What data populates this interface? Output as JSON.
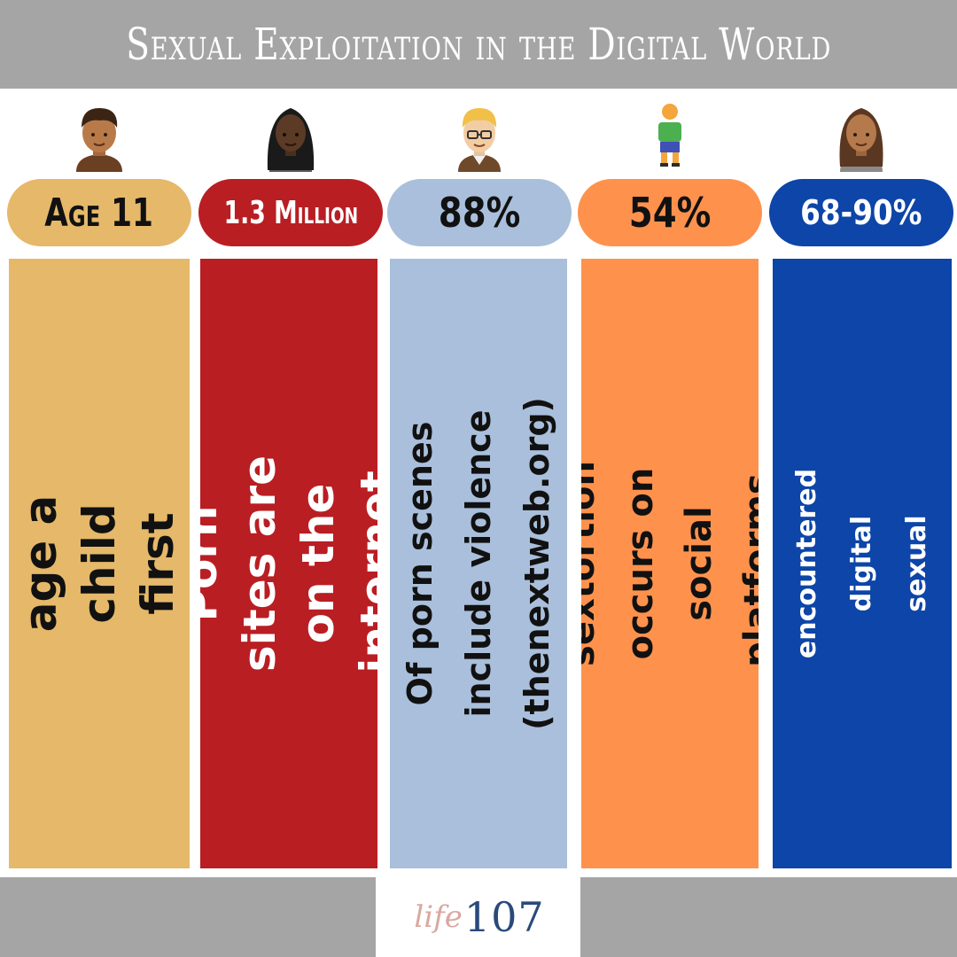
{
  "title": "Sexual Exploitation in the Digital World",
  "columns": [
    {
      "stat": "Age 11",
      "text": "The average age a child first sees porn.",
      "pill_color": "#e5b86a",
      "box_color": "#e5b86a",
      "text_color": "#111111",
      "avatar": "boy-avatar-icon"
    },
    {
      "stat": "1.3 Million",
      "text": "Porn sites are on the internet.",
      "pill_color": "#b91e23",
      "box_color": "#b91e23",
      "text_color": "#ffffff",
      "avatar": "woman-avatar-icon"
    },
    {
      "stat": "88%",
      "text": "Of porn scenes include violence (thenextweb.org)",
      "pill_color": "#a9bfdb",
      "box_color": "#a9bfdb",
      "text_color": "#111111",
      "avatar": "glasses-man-avatar-icon"
    },
    {
      "stat": "54%",
      "text": "Of sextortion occurs on social platforms. (Thorn)",
      "pill_color": "#fe924d",
      "box_color": "#fe924d",
      "text_color": "#111111",
      "avatar": "child-figure-icon"
    },
    {
      "stat": "68-90%",
      "text": "Of teens in a study encountered digital sexual content. (Bark)",
      "pill_color": "#0d45a8",
      "box_color": "#0d45a8",
      "text_color": "#ffffff",
      "avatar": "girl-avatar-icon"
    }
  ],
  "logo": {
    "script": "life",
    "number": "107"
  }
}
